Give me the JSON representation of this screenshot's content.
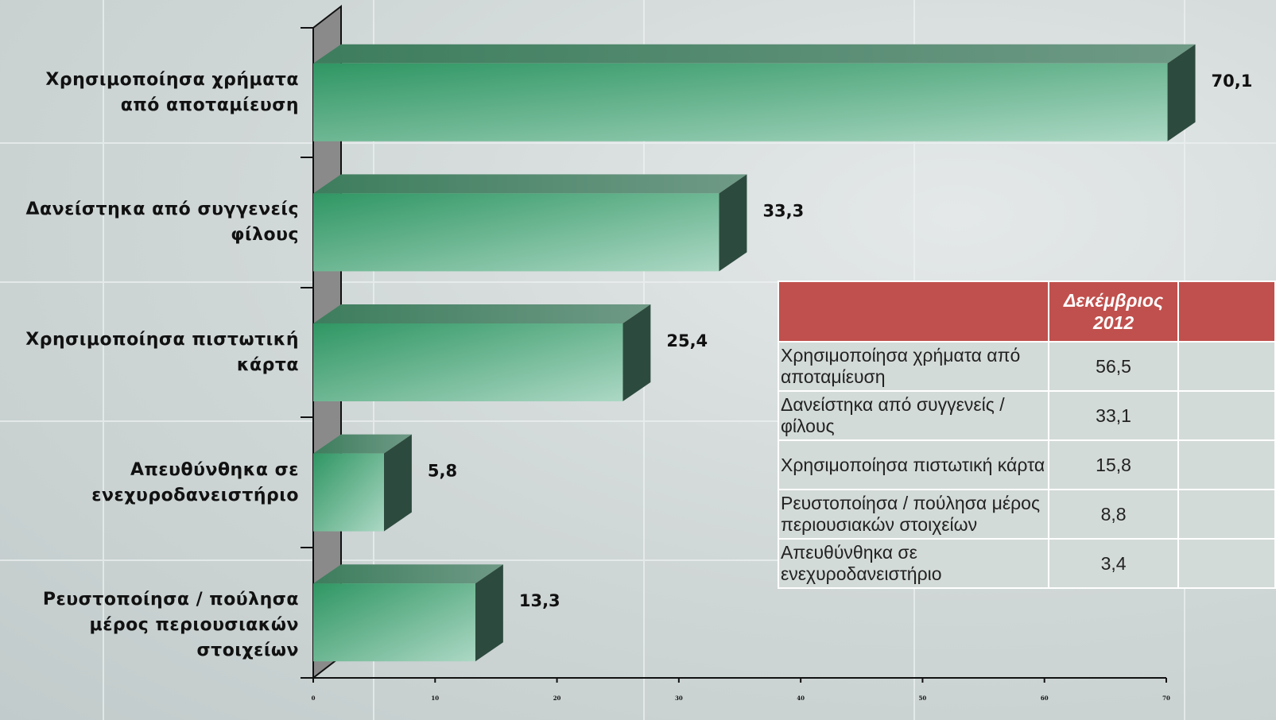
{
  "chart_data": {
    "type": "hbar3d",
    "categories": [
      "Χρησιμοποίησα χρήματα από αποταμίευση",
      "Δανείστηκα από συγγενείς φίλους",
      "Χρησιμοποίησα πιστωτική κάρτα",
      "Απευθύνθηκα σε ενεχυροδανειστήριο",
      "Ρευστοποίησα / πούλησα μέρος περιουσιακών στοιχείων"
    ],
    "values": [
      70.1,
      33.3,
      25.4,
      5.8,
      13.3
    ],
    "value_labels": [
      "70,1",
      "33,3",
      "25,4",
      "5,8",
      "13,3"
    ],
    "color": "#3f9f70",
    "xlim": [
      0,
      70
    ],
    "xticks": [
      0,
      10,
      20,
      30,
      40,
      50,
      60,
      70
    ]
  },
  "table": {
    "column_header": "Δεκέμβριος 2012",
    "rows": [
      [
        "Χρησιμοποίησα χρήματα από αποταμίευση",
        "56,5"
      ],
      [
        "Δανείστηκα από συγγενείς / φίλους",
        "33,1"
      ],
      [
        "Χρησιμοποίησα πιστωτική κάρτα",
        "15,8"
      ],
      [
        "Ρευστοποίησα / πούλησα  μέρος περιουσιακών στοιχείων",
        "8,8"
      ],
      [
        "Απευθύνθηκα σε ενεχυροδανειστήριο",
        "3,4"
      ]
    ]
  }
}
